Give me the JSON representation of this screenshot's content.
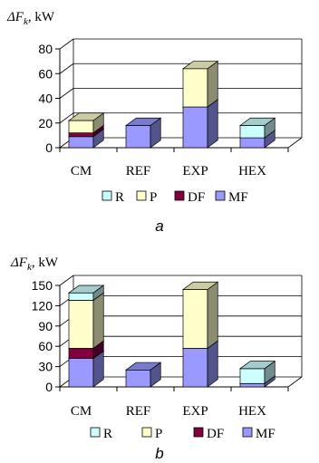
{
  "colors": {
    "R": "#ccffff",
    "P": "#ffffcc",
    "DF": "#800040",
    "MF": "#9999ff"
  },
  "chart_data": [
    {
      "type": "bar",
      "stacked": true,
      "three_d": true,
      "panel_label": "a",
      "ylabel_symbol": "ΔF",
      "ylabel_subscript": "k",
      "ylabel_unit": ", kW",
      "ylim": [
        0,
        80
      ],
      "yticks": [
        "0",
        "20",
        "40",
        "60",
        "80"
      ],
      "categories": [
        "CM",
        "REF",
        "EXP",
        "HEX"
      ],
      "series": [
        {
          "name": "MF",
          "key": "MF",
          "values": [
            9,
            18,
            33,
            8
          ]
        },
        {
          "name": "DF",
          "key": "DF",
          "values": [
            3,
            0,
            0,
            0
          ]
        },
        {
          "name": "P",
          "key": "P",
          "values": [
            10,
            0,
            31,
            0
          ]
        },
        {
          "name": "R",
          "key": "R",
          "values": [
            0,
            0,
            0,
            10
          ]
        }
      ],
      "legend_order": [
        "R",
        "P",
        "DF",
        "MF"
      ],
      "grid": true,
      "legend_position": "bottom"
    },
    {
      "type": "bar",
      "stacked": true,
      "three_d": true,
      "panel_label": "b",
      "ylabel_symbol": "ΔF",
      "ylabel_subscript": "k",
      "ylabel_unit": ", kW",
      "ylim": [
        0,
        150
      ],
      "yticks": [
        "0",
        "30",
        "60",
        "90",
        "120",
        "150"
      ],
      "categories": [
        "CM",
        "REF",
        "EXP",
        "HEX"
      ],
      "series": [
        {
          "name": "MF",
          "key": "MF",
          "values": [
            42,
            25,
            57,
            5
          ]
        },
        {
          "name": "DF",
          "key": "DF",
          "values": [
            15,
            0,
            0,
            0
          ]
        },
        {
          "name": "P",
          "key": "P",
          "values": [
            71,
            0,
            87,
            0
          ]
        },
        {
          "name": "R",
          "key": "R",
          "values": [
            11,
            0,
            0,
            22
          ]
        }
      ],
      "legend_order": [
        "R",
        "P",
        "DF",
        "MF"
      ],
      "grid": true,
      "legend_position": "bottom"
    }
  ]
}
